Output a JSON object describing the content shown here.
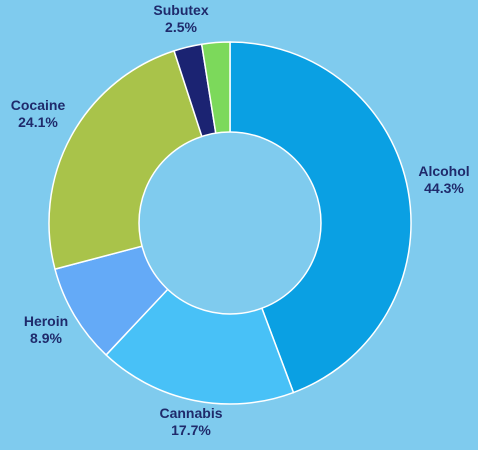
{
  "chart_data": {
    "type": "pie",
    "variant": "donut",
    "legend": "none",
    "label_color": "#1f2a6b",
    "background": "#7fcbee",
    "inner_fill": "#7fcbee",
    "separator_color": "#ffffff",
    "slices": [
      {
        "label": "Alcohol",
        "value": 44.3,
        "value_label": "44.3%",
        "color": "#0aa0e3"
      },
      {
        "label": "Cannabis",
        "value": 17.7,
        "value_label": "17.7%",
        "color": "#48c1f7"
      },
      {
        "label": "Heroin",
        "value": 8.9,
        "value_label": "8.9%",
        "color": "#64aaf7"
      },
      {
        "label": "Cocaine",
        "value": 24.1,
        "value_label": "24.1%",
        "color": "#a9c34a"
      },
      {
        "label": "Subutex",
        "value": 2.5,
        "value_label": "2.5%",
        "color": "#1b2372"
      },
      {
        "label": "",
        "value": 2.5,
        "value_label": "",
        "color": "#7cd95b"
      }
    ]
  }
}
